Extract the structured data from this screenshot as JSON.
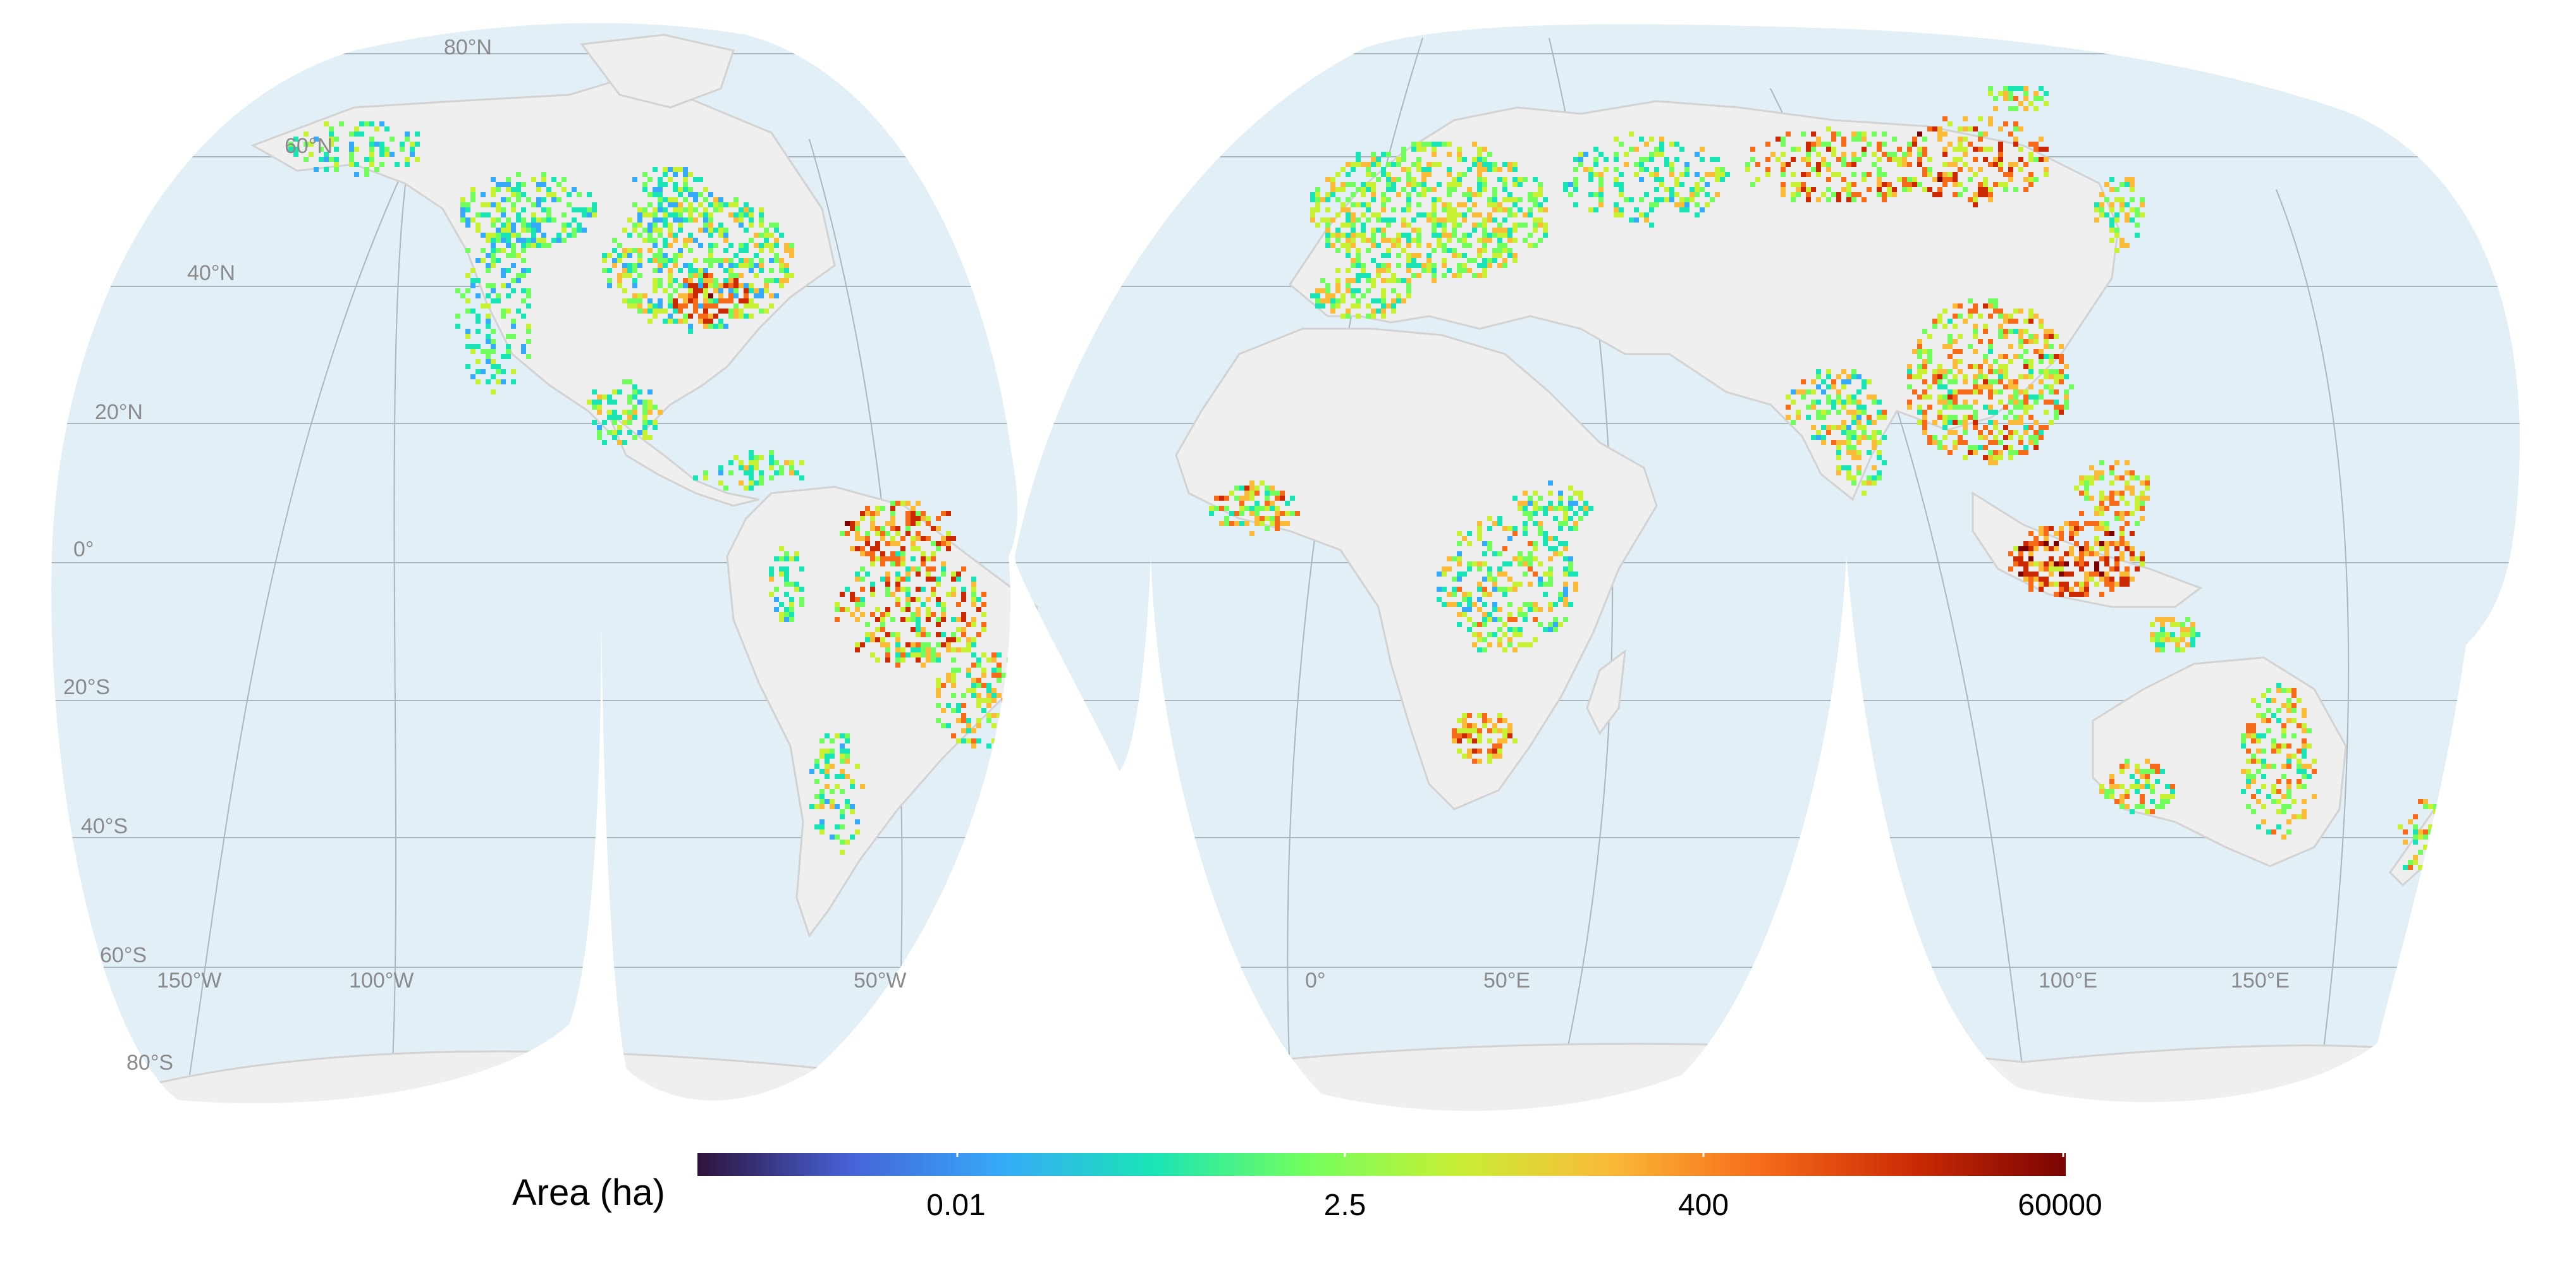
{
  "map": {
    "projection": "interrupted-goode-homolosine",
    "colors": {
      "ocean": "#e2eff7",
      "land": "#efefef",
      "border": "#d2d2d2",
      "graticule": "#a9b6c0",
      "label": "#8a8a8a"
    },
    "lat_labels": [
      "80°N",
      "60°N",
      "40°N",
      "20°N",
      "0°",
      "20°S",
      "40°S",
      "60°S",
      "80°S"
    ],
    "lon_labels": [
      "150°W",
      "100°W",
      "50°W",
      "0°",
      "50°E",
      "100°E",
      "150°E"
    ]
  },
  "legend": {
    "title": "Area (ha)",
    "ticks": [
      "0.01",
      "2.5",
      "400",
      "60000"
    ],
    "palette": [
      "#30123b",
      "#4662d7",
      "#36aaf9",
      "#1ae4b6",
      "#72fe5e",
      "#c7ef34",
      "#faba39",
      "#f66b19",
      "#cb2a04",
      "#7a0403"
    ]
  }
}
